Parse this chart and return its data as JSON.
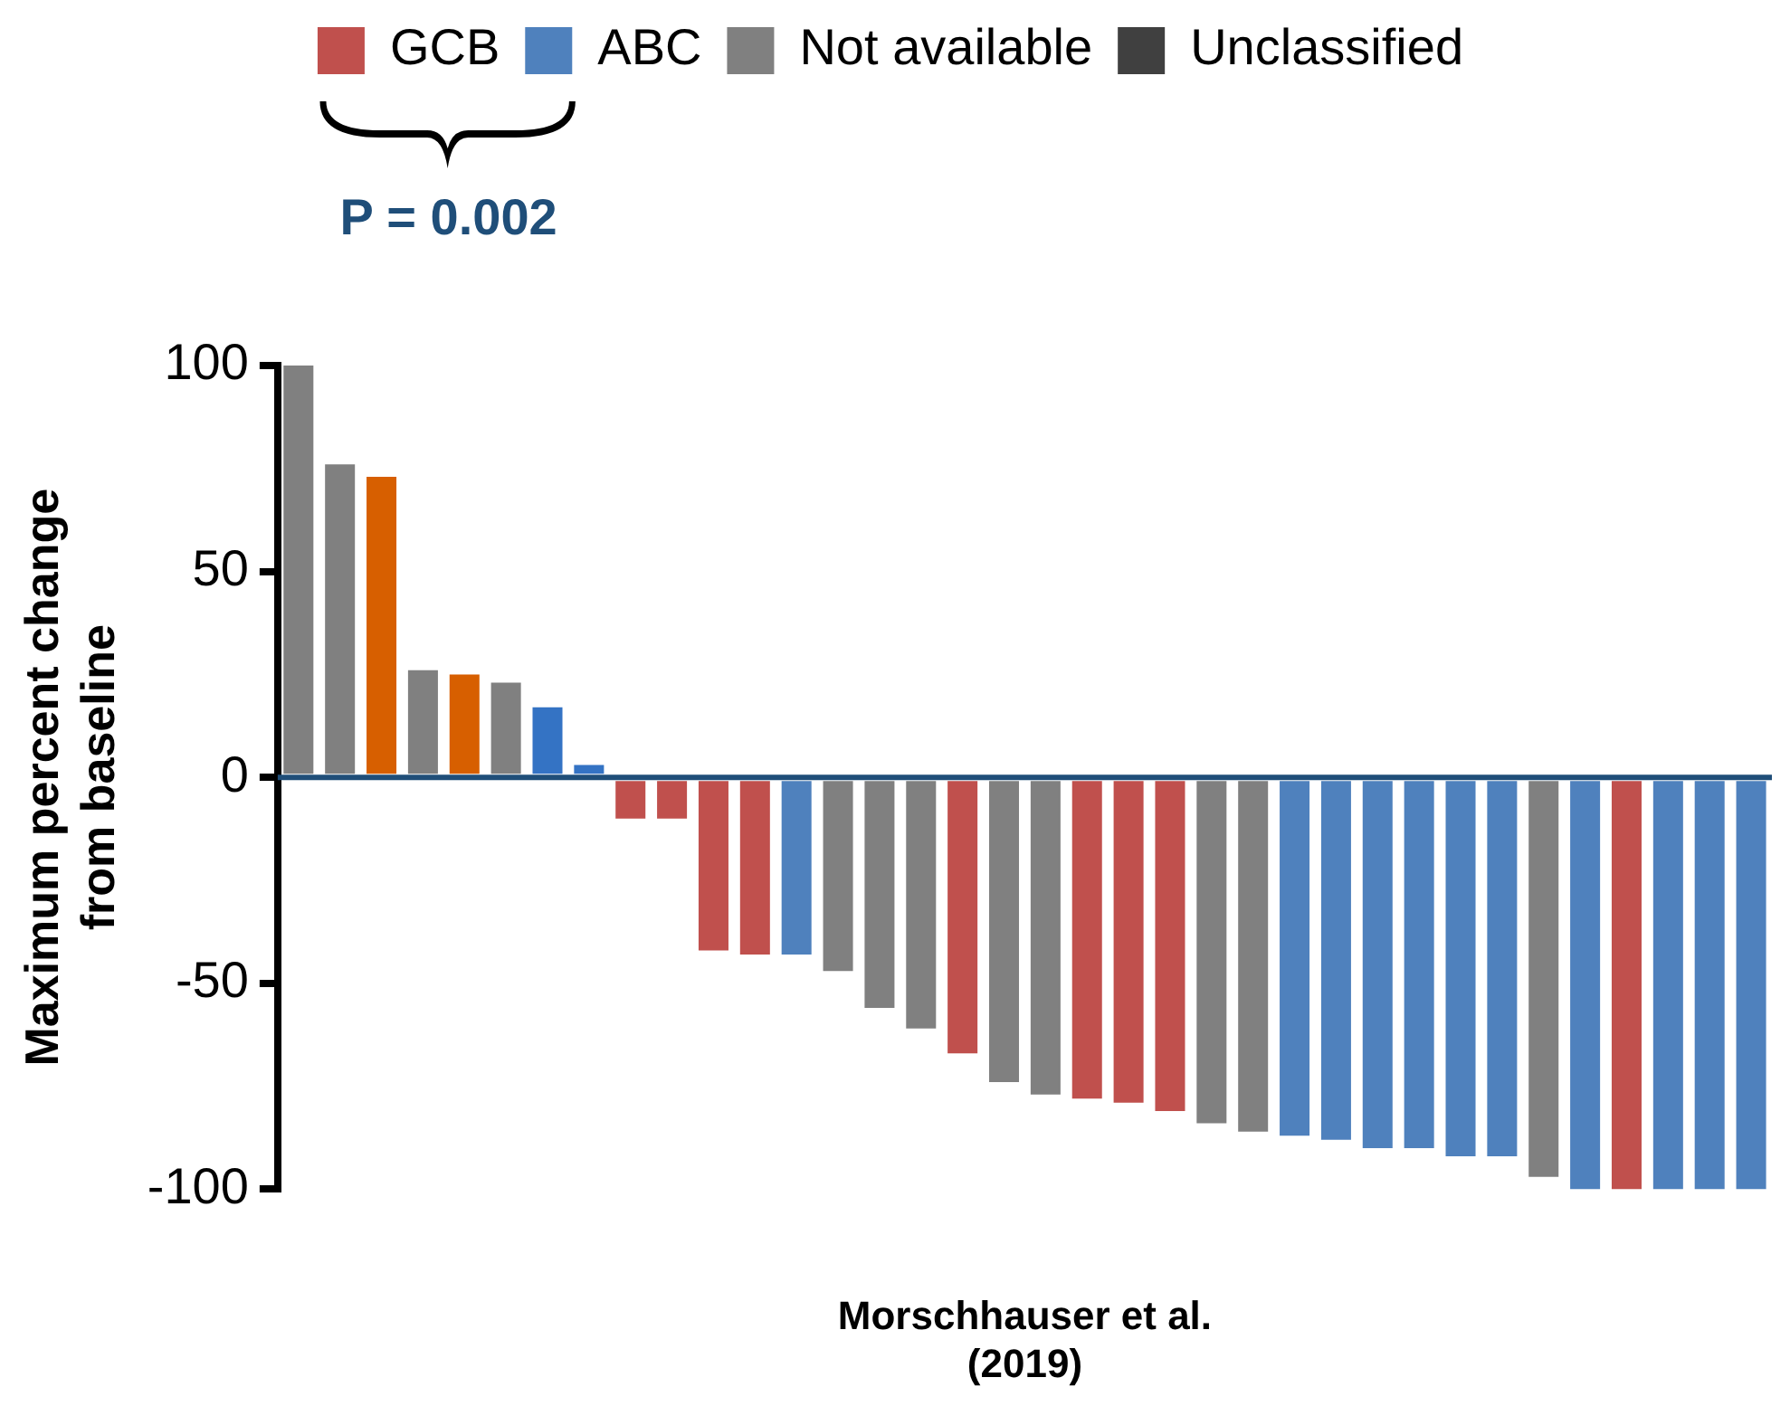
{
  "chart_data": {
    "type": "bar",
    "stacked": true,
    "categories": [
      null,
      null,
      null,
      null,
      null,
      null,
      null,
      null,
      null,
      null,
      null,
      null,
      null,
      null,
      null,
      null,
      null,
      null,
      null,
      null,
      null,
      null,
      null,
      null,
      null,
      null,
      null,
      null,
      null,
      null,
      null,
      null,
      null,
      null,
      null,
      null
    ],
    "series": [
      {
        "name": "GCB",
        "color": "#c0504d",
        "values": [
          null,
          null,
          null,
          null,
          null,
          null,
          null,
          null,
          -10,
          -10,
          -42,
          -43,
          null,
          null,
          null,
          null,
          -67,
          null,
          null,
          -78,
          -79,
          -81,
          null,
          null,
          null,
          null,
          null,
          null,
          null,
          null,
          null,
          null,
          -100,
          null,
          null,
          null
        ]
      },
      {
        "name": "ABC",
        "color": "#4f81bd",
        "colors": [
          "#4f81bd",
          "#4f81bd",
          "#4f81bd",
          "#4f81bd",
          "#4f81bd",
          "#4f81bd",
          "#3473c4",
          "#3473c4",
          "#4f81bd",
          "#4f81bd",
          "#4f81bd",
          "#4f81bd",
          "#4f81bd",
          "#4f81bd",
          "#4f81bd",
          "#4f81bd",
          "#4f81bd",
          "#4f81bd",
          "#4f81bd",
          "#4f81bd",
          "#4f81bd",
          "#4f81bd",
          "#4f81bd",
          "#4f81bd",
          "#4f81bd",
          "#4f81bd",
          "#4f81bd",
          "#4f81bd",
          "#4f81bd",
          "#4f81bd",
          "#4f81bd",
          "#4f81bd",
          "#4f81bd",
          "#4f81bd",
          "#4f81bd",
          "#4f81bd"
        ],
        "values": [
          null,
          null,
          null,
          null,
          null,
          null,
          17,
          3,
          null,
          null,
          null,
          null,
          -43,
          null,
          null,
          null,
          null,
          null,
          null,
          null,
          null,
          null,
          null,
          null,
          -87,
          -88,
          -90,
          -90,
          -92,
          -92,
          null,
          -100,
          null,
          -100,
          -100,
          -100
        ]
      },
      {
        "name": "Not available",
        "color": "#808080",
        "values": [
          100,
          76,
          null,
          26,
          null,
          23,
          null,
          null,
          null,
          null,
          null,
          null,
          null,
          -47,
          -56,
          -61,
          null,
          -74,
          -77,
          null,
          null,
          null,
          -84,
          -86,
          null,
          null,
          null,
          null,
          null,
          null,
          -97,
          null,
          null,
          null,
          null,
          null
        ]
      },
      {
        "name": "Unclassified",
        "color": "#404040",
        "values": [
          null,
          null,
          null,
          null,
          null,
          null,
          null,
          null,
          null,
          null,
          null,
          null,
          null,
          null,
          null,
          null,
          null,
          null,
          null,
          null,
          null,
          null,
          null,
          null,
          null,
          null,
          null,
          null,
          null,
          null,
          null,
          null,
          null,
          null,
          null,
          null
        ]
      },
      {
        "color": "#d75f00",
        "values": [
          null,
          null,
          73,
          null,
          25,
          null,
          null,
          null,
          null,
          null,
          null,
          null,
          null,
          null,
          null,
          null,
          null,
          null,
          null,
          null,
          null,
          null,
          null,
          null,
          null,
          null,
          null,
          null,
          null,
          null,
          null,
          null,
          null,
          null,
          null,
          null
        ]
      }
    ],
    "ylim": [
      -100,
      100
    ],
    "yticks": [
      100,
      50,
      0,
      -50,
      -100
    ],
    "grid": false,
    "legend": "top",
    "ylabel": "Maximum percent change\nfrom baseline",
    "xlabel": "Morschhauser et al.\n(2019)",
    "ref_lines": [
      {
        "axis": "y",
        "value": 0,
        "color": "#1f4e79"
      }
    ],
    "annotations": [
      "P = 0.002"
    ]
  }
}
